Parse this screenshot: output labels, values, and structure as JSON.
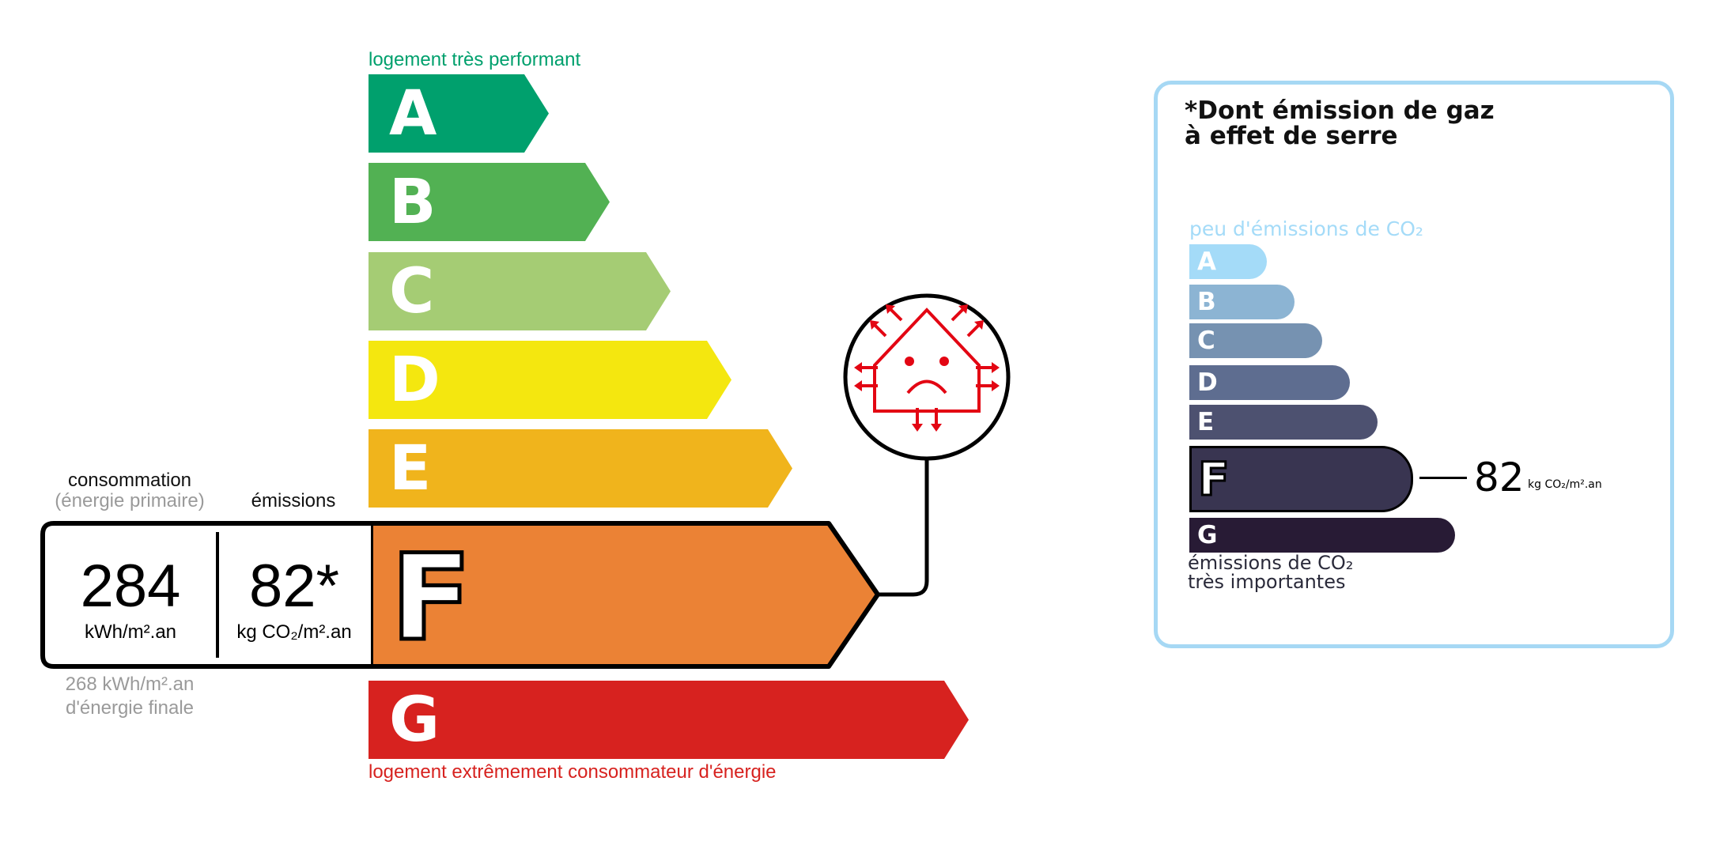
{
  "energy": {
    "top_label": "logement très performant",
    "bottom_label": "logement extrêmement consommateur d'énergie",
    "classes": [
      {
        "letter": "A",
        "color": "#00a06d"
      },
      {
        "letter": "B",
        "color": "#52b153"
      },
      {
        "letter": "C",
        "color": "#a5cc74"
      },
      {
        "letter": "D",
        "color": "#f4e70f"
      },
      {
        "letter": "E",
        "color": "#f0b41c"
      },
      {
        "letter": "F",
        "color": "#eb8235"
      },
      {
        "letter": "G",
        "color": "#d7221f"
      }
    ],
    "current_class": "F",
    "consumption_label": "consommation",
    "consumption_sub": "(énergie primaire)",
    "emissions_label": "émissions",
    "consumption_value": "284",
    "consumption_unit": "kWh/m².an",
    "emissions_value": "82*",
    "emissions_unit": "kg CO₂/m².an",
    "final_energy_value": "268 kWh/m².an",
    "final_energy_label": "d'énergie finale",
    "icon": "poorly-insulated-house-sad-icon",
    "icon_color": "#e30613"
  },
  "ges": {
    "title_line1": "*Dont émission de gaz",
    "title_line2": "à effet de serre",
    "top_label": "peu d'émissions de CO₂",
    "bottom_label_line1": "émissions de CO₂",
    "bottom_label_line2": "très importantes",
    "classes": [
      {
        "letter": "A",
        "color": "#a4dbf8"
      },
      {
        "letter": "B",
        "color": "#8cb4d3"
      },
      {
        "letter": "C",
        "color": "#7692b1"
      },
      {
        "letter": "D",
        "color": "#5e6d90"
      },
      {
        "letter": "E",
        "color": "#4d5170"
      },
      {
        "letter": "F",
        "color": "#393551"
      },
      {
        "letter": "G",
        "color": "#281b35"
      }
    ],
    "current_class": "F",
    "value": "82",
    "unit": "kg CO₂/m².an",
    "border_color": "#a6d8f4"
  }
}
